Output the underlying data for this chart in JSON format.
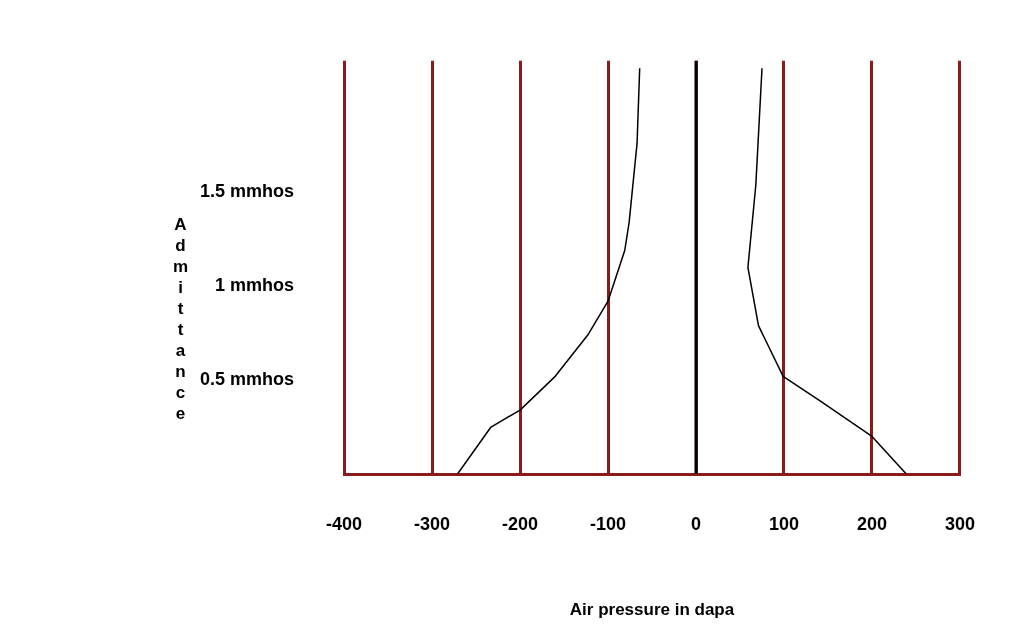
{
  "chart_data": {
    "type": "line",
    "xlabel": "Air pressure in dapa",
    "ylabel": "Admittance",
    "xlim": [
      -400,
      300
    ],
    "xticks": [
      -400,
      -300,
      -200,
      -100,
      0,
      100,
      200,
      300
    ],
    "ylim": [
      0,
      2.2
    ],
    "yticks": [
      {
        "value": 0.5,
        "label": "0.5 mmhos"
      },
      {
        "value": 1,
        "label": "1 mmhos"
      },
      {
        "value": 1.5,
        "label": "1.5 mmhos"
      }
    ],
    "grid": "x",
    "legend": false,
    "marker": "none",
    "line_style": "solid",
    "ref_lines": [
      {
        "axis": "x",
        "value": 0,
        "color": "#000000"
      }
    ],
    "series": [
      {
        "color": "#000000",
        "x": [
          -271,
          -233,
          -200,
          -160,
          -123,
          -100,
          -81,
          -76,
          -67,
          -64
        ],
        "values": [
          0,
          0.25,
          0.34,
          0.52,
          0.74,
          0.92,
          1.19,
          1.34,
          1.76,
          2.16
        ]
      },
      {
        "color": "#000000",
        "x": [
          75,
          68,
          59,
          71,
          99,
          141,
          200,
          239
        ],
        "values": [
          2.16,
          1.54,
          1.1,
          0.79,
          0.52,
          0.39,
          0.2,
          0
        ]
      }
    ]
  }
}
